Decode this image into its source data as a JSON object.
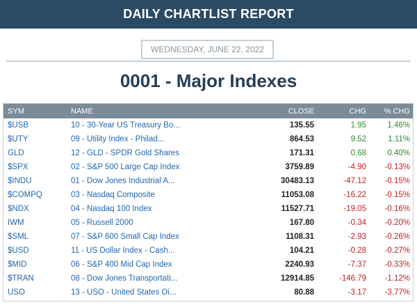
{
  "header": {
    "title": "DAILY CHARTLIST REPORT"
  },
  "report": {
    "date": "WEDNESDAY, JUNE 22, 2022",
    "list_title": "0001 - Major Indexes"
  },
  "table": {
    "columns": {
      "sym": "SYM",
      "name": "NAME",
      "close": "CLOSE",
      "chg": "CHG",
      "pct": "% CHG"
    },
    "rows": [
      {
        "sym": "$USB",
        "name": "10 - 30-Year US Treasury Bo...",
        "close": "135.55",
        "chg": "1.95",
        "pct": "1.46%",
        "dir": "pos"
      },
      {
        "sym": "$UTY",
        "name": "09 - Utility Index - Philad...",
        "close": "864.53",
        "chg": "9.52",
        "pct": "1.11%",
        "dir": "pos"
      },
      {
        "sym": "GLD",
        "name": "12 - GLD - SPDR Gold Shares",
        "close": "171.31",
        "chg": "0.68",
        "pct": "0.40%",
        "dir": "pos"
      },
      {
        "sym": "$SPX",
        "name": "02 - S&P 500 Large Cap Index",
        "close": "3759.89",
        "chg": "-4.90",
        "pct": "-0.13%",
        "dir": "neg"
      },
      {
        "sym": "$INDU",
        "name": "01 - Dow Jones Industrial A...",
        "close": "30483.13",
        "chg": "-47.12",
        "pct": "-0.15%",
        "dir": "neg"
      },
      {
        "sym": "$COMPQ",
        "name": "03 - Nasdaq Composite",
        "close": "11053.08",
        "chg": "-16.22",
        "pct": "-0.15%",
        "dir": "neg"
      },
      {
        "sym": "$NDX",
        "name": "04 - Nasdaq 100 Index",
        "close": "11527.71",
        "chg": "-19.05",
        "pct": "-0.16%",
        "dir": "neg"
      },
      {
        "sym": "IWM",
        "name": "05 - Russell 2000",
        "close": "167.80",
        "chg": "-0.34",
        "pct": "-0.20%",
        "dir": "neg"
      },
      {
        "sym": "$SML",
        "name": "07 - S&P 600 Small Cap Index",
        "close": "1108.31",
        "chg": "-2.93",
        "pct": "-0.26%",
        "dir": "neg"
      },
      {
        "sym": "$USD",
        "name": "11 - US Dollar Index - Cash...",
        "close": "104.21",
        "chg": "-0.28",
        "pct": "-0.27%",
        "dir": "neg"
      },
      {
        "sym": "$MID",
        "name": "06 - S&P 400 Mid Cap Index",
        "close": "2240.93",
        "chg": "-7.37",
        "pct": "-0.33%",
        "dir": "neg"
      },
      {
        "sym": "$TRAN",
        "name": "08 - Dow Jones Transportati...",
        "close": "12914.85",
        "chg": "-146.79",
        "pct": "-1.12%",
        "dir": "neg"
      },
      {
        "sym": "USO",
        "name": "13 - USO - United States Oi...",
        "close": "80.88",
        "chg": "-3.17",
        "pct": "-3.77%",
        "dir": "neg"
      }
    ]
  }
}
